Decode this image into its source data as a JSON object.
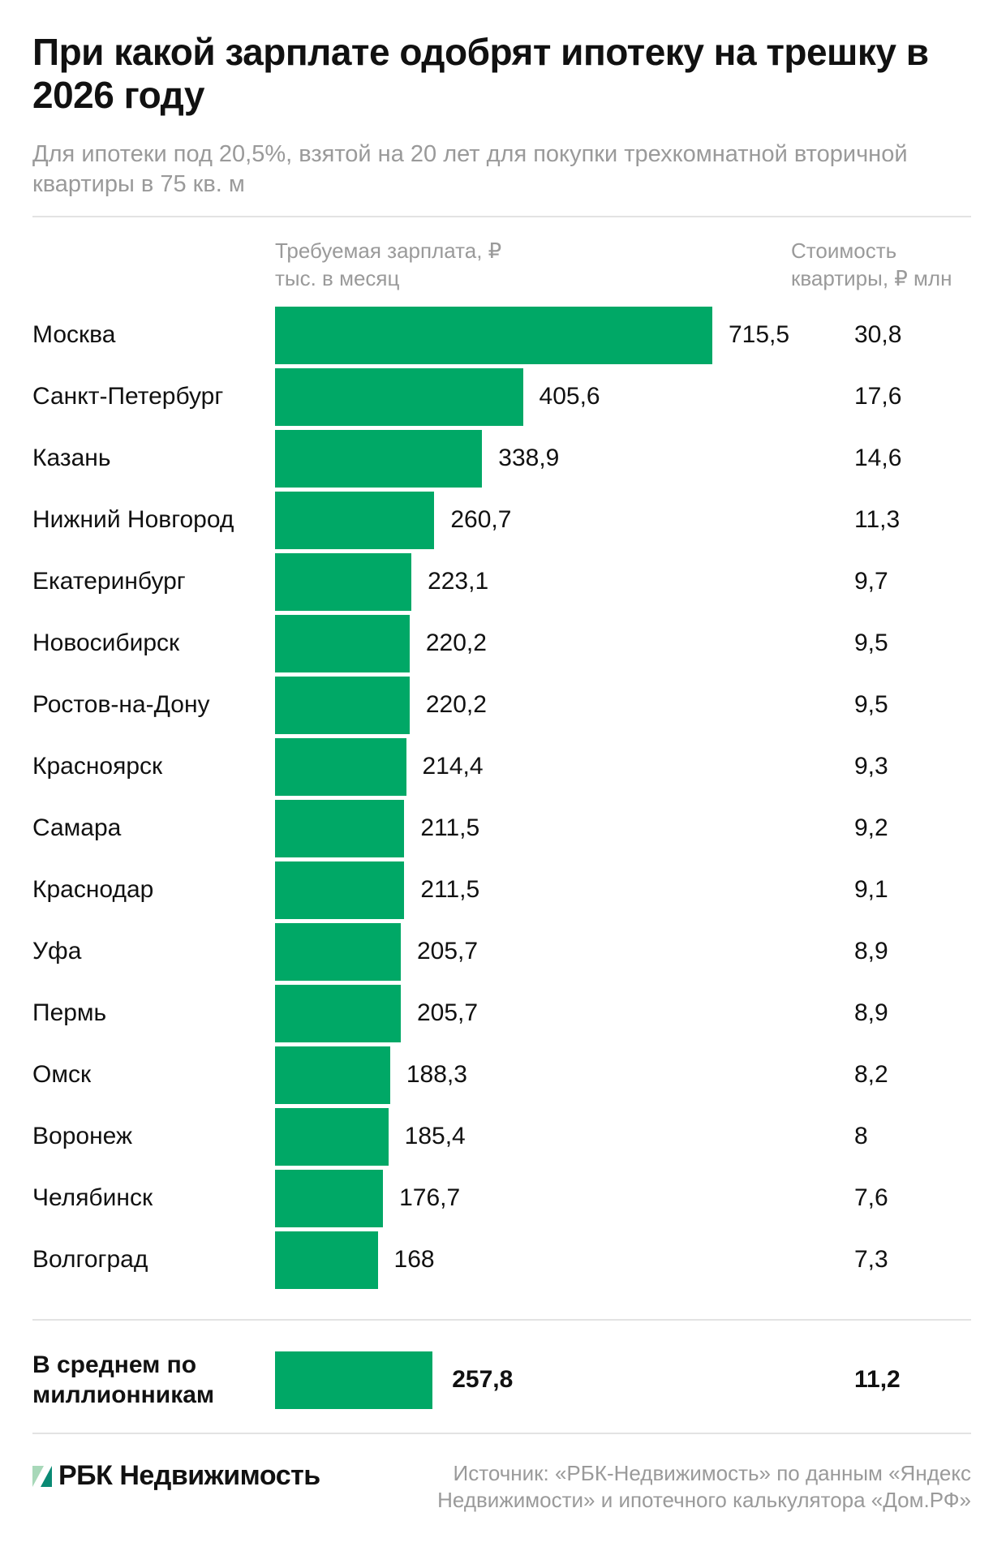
{
  "title": "При какой зарплате одобрят ипотеку на трешку в 2026 году",
  "subtitle": "Для ипотеки под 20,5%, взятой на 20 лет для покупки трехкомнатной вторичной квартиры в 75 кв. м",
  "colors": {
    "bar": "#00a866",
    "logo_light": "#a8d8b9",
    "logo_dark": "#0a8a74"
  },
  "chart_data": {
    "type": "bar",
    "orientation": "horizontal",
    "column_headers": {
      "salary": "Требуемая зарплата, ₽ тыс. в месяц",
      "cost": "Стоимость квартиры, ₽ млн"
    },
    "categories": [
      "Москва",
      "Санкт-Петербург",
      "Казань",
      "Нижний Новгород",
      "Екатеринбург",
      "Новосибирск",
      "Ростов-на-Дону",
      "Красноярск",
      "Самара",
      "Краснодар",
      "Уфа",
      "Пермь",
      "Омск",
      "Воронеж",
      "Челябинск",
      "Волгоград"
    ],
    "values": [
      715.5,
      405.6,
      338.9,
      260.7,
      223.1,
      220.2,
      220.2,
      214.4,
      211.5,
      211.5,
      205.7,
      205.7,
      188.3,
      185.4,
      176.7,
      168
    ],
    "value_labels": [
      "715,5",
      "405,6",
      "338,9",
      "260,7",
      "223,1",
      "220,2",
      "220,2",
      "214,4",
      "211,5",
      "211,5",
      "205,7",
      "205,7",
      "188,3",
      "185,4",
      "176,7",
      "168"
    ],
    "costs": [
      "30,8",
      "17,6",
      "14,6",
      "11,3",
      "9,7",
      "9,5",
      "9,5",
      "9,3",
      "9,2",
      "9,1",
      "8,9",
      "8,9",
      "8,2",
      "8",
      "7,6",
      "7,3"
    ],
    "average": {
      "label": "В среднем по миллионникам",
      "value": 257.8,
      "value_label": "257,8",
      "cost": "11,2"
    }
  },
  "footer": {
    "logo": "РБК Недвижимость",
    "source": "Источник: «РБК-Недвижимость» по данным «Яндекс Недвижимости» и ипотечного калькулятора «Дом.РФ»"
  }
}
